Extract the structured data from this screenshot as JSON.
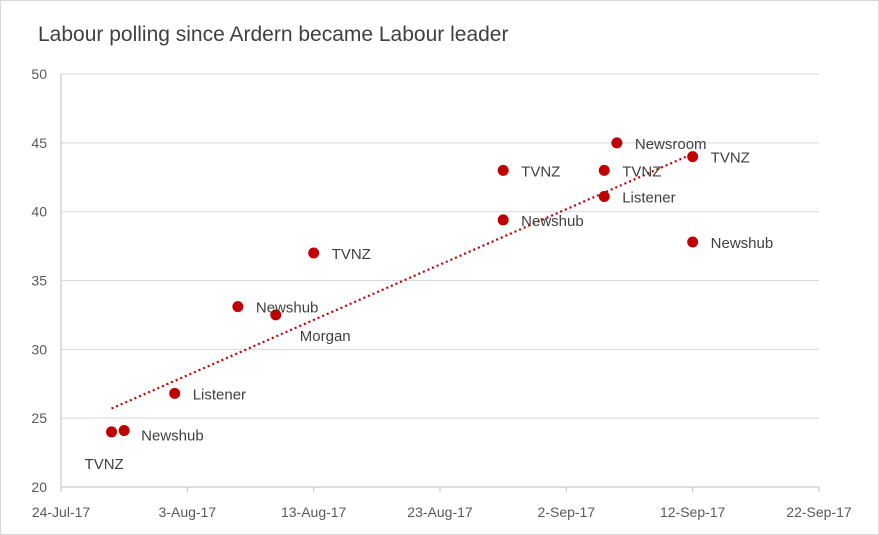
{
  "chart_data": {
    "type": "scatter",
    "title": "Labour polling since Ardern became Labour leader",
    "xlabel": "",
    "ylabel": "",
    "x_ticks": [
      "24-Jul-17",
      "3-Aug-17",
      "13-Aug-17",
      "23-Aug-17",
      "2-Sep-17",
      "12-Sep-17",
      "22-Sep-17"
    ],
    "xlim": [
      "2017-07-24",
      "2017-09-22"
    ],
    "y_ticks": [
      20,
      25,
      30,
      35,
      40,
      45,
      50
    ],
    "ylim": [
      20,
      50
    ],
    "grid": true,
    "point_color": "#c00000",
    "trendline": {
      "style": "dotted",
      "color": "#c00000",
      "from": [
        "2017-07-28",
        25.7
      ],
      "to": [
        "2017-09-12",
        44.2
      ]
    },
    "points": [
      {
        "date": "2017-07-28",
        "value": 24.0,
        "label": "TVNZ"
      },
      {
        "date": "2017-07-29",
        "value": 24.1,
        "label": "Newshub"
      },
      {
        "date": "2017-08-02",
        "value": 26.8,
        "label": "Listener"
      },
      {
        "date": "2017-08-07",
        "value": 33.1,
        "label": "Newshub"
      },
      {
        "date": "2017-08-10",
        "value": 32.5,
        "label": "Morgan"
      },
      {
        "date": "2017-08-13",
        "value": 37.0,
        "label": "TVNZ"
      },
      {
        "date": "2017-08-28",
        "value": 43.0,
        "label": "TVNZ"
      },
      {
        "date": "2017-08-28",
        "value": 39.4,
        "label": "Newshub"
      },
      {
        "date": "2017-09-05",
        "value": 43.0,
        "label": "TVNZ"
      },
      {
        "date": "2017-09-05",
        "value": 41.1,
        "label": "Listener"
      },
      {
        "date": "2017-09-06",
        "value": 45.0,
        "label": "Newsroom"
      },
      {
        "date": "2017-09-12",
        "value": 44.0,
        "label": "TVNZ"
      },
      {
        "date": "2017-09-12",
        "value": 37.8,
        "label": "Newshub"
      }
    ]
  }
}
